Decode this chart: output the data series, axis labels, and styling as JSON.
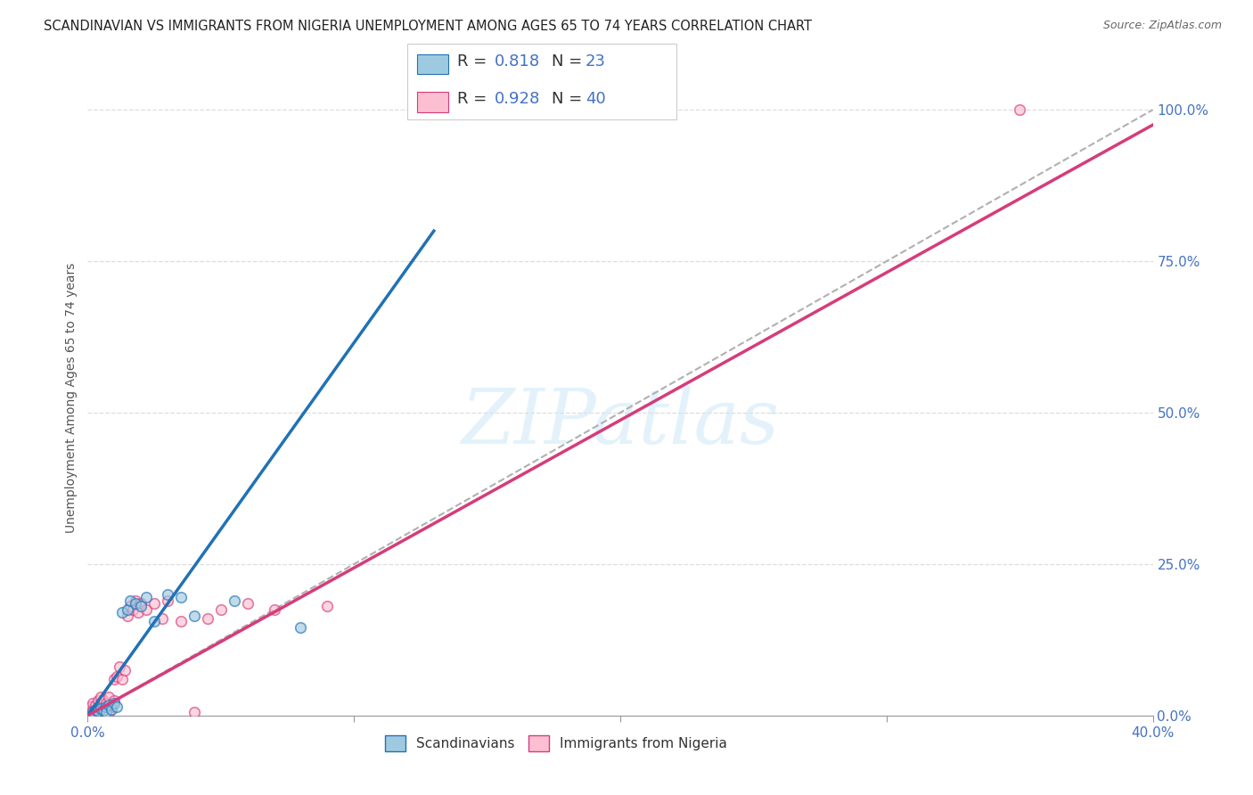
{
  "title": "SCANDINAVIAN VS IMMIGRANTS FROM NIGERIA UNEMPLOYMENT AMONG AGES 65 TO 74 YEARS CORRELATION CHART",
  "source": "Source: ZipAtlas.com",
  "ylabel": "Unemployment Among Ages 65 to 74 years",
  "xlim": [
    0.0,
    0.4
  ],
  "ylim": [
    0.0,
    1.05
  ],
  "x_tick_positions": [
    0.0,
    0.1,
    0.2,
    0.3,
    0.4
  ],
  "x_tick_labels_show": [
    "0.0%",
    "",
    "",
    "",
    "40.0%"
  ],
  "y_tick_positions": [
    0.0,
    0.25,
    0.5,
    0.75,
    1.0
  ],
  "y_tick_labels": [
    "0.0%",
    "25.0%",
    "50.0%",
    "75.0%",
    "100.0%"
  ],
  "watermark": "ZIPatlas",
  "legend_R1": "0.818",
  "legend_N1": "23",
  "legend_R2": "0.928",
  "legend_N2": "40",
  "color_scandinavian": "#9ecae1",
  "color_nigeria": "#fcbfd2",
  "color_line_scandinavian": "#2171b5",
  "color_line_nigeria": "#d63c7a",
  "scatter_alpha": 0.65,
  "scatter_size": 70,
  "scandinavian_x": [
    0.002,
    0.003,
    0.004,
    0.005,
    0.006,
    0.007,
    0.007,
    0.008,
    0.009,
    0.01,
    0.011,
    0.013,
    0.015,
    0.016,
    0.018,
    0.02,
    0.022,
    0.025,
    0.03,
    0.035,
    0.04,
    0.055,
    0.08
  ],
  "scandinavian_y": [
    0.005,
    0.01,
    0.007,
    0.012,
    0.008,
    0.015,
    0.005,
    0.018,
    0.01,
    0.02,
    0.015,
    0.17,
    0.175,
    0.19,
    0.185,
    0.18,
    0.195,
    0.155,
    0.2,
    0.195,
    0.165,
    0.19,
    0.145
  ],
  "nigeria_x": [
    0.001,
    0.001,
    0.002,
    0.002,
    0.003,
    0.003,
    0.004,
    0.004,
    0.005,
    0.005,
    0.006,
    0.006,
    0.007,
    0.008,
    0.008,
    0.009,
    0.01,
    0.01,
    0.011,
    0.012,
    0.013,
    0.014,
    0.015,
    0.016,
    0.017,
    0.018,
    0.019,
    0.02,
    0.022,
    0.025,
    0.028,
    0.03,
    0.035,
    0.04,
    0.045,
    0.05,
    0.06,
    0.07,
    0.09,
    0.35
  ],
  "nigeria_y": [
    0.005,
    0.015,
    0.01,
    0.02,
    0.008,
    0.018,
    0.012,
    0.025,
    0.015,
    0.03,
    0.01,
    0.025,
    0.02,
    0.03,
    0.005,
    0.015,
    0.025,
    0.06,
    0.065,
    0.08,
    0.06,
    0.075,
    0.165,
    0.18,
    0.175,
    0.19,
    0.17,
    0.185,
    0.175,
    0.185,
    0.16,
    0.19,
    0.155,
    0.005,
    0.16,
    0.175,
    0.185,
    0.175,
    0.18,
    1.0
  ],
  "ref_line": {
    "x": [
      0.0,
      0.4
    ],
    "y": [
      0.0,
      1.0
    ]
  },
  "blue_line": {
    "x": [
      0.0,
      0.13
    ],
    "y": [
      0.0,
      0.8
    ]
  },
  "pink_line": {
    "x": [
      0.0,
      0.4
    ],
    "y": [
      0.0,
      0.975
    ]
  },
  "grid_color": "#dddddd",
  "tick_color": "#4472c4",
  "legend_box_color": "#4472c4",
  "title_fontsize": 10.5,
  "source_fontsize": 9,
  "axis_label_fontsize": 10,
  "tick_fontsize": 11,
  "legend_fontsize": 13
}
